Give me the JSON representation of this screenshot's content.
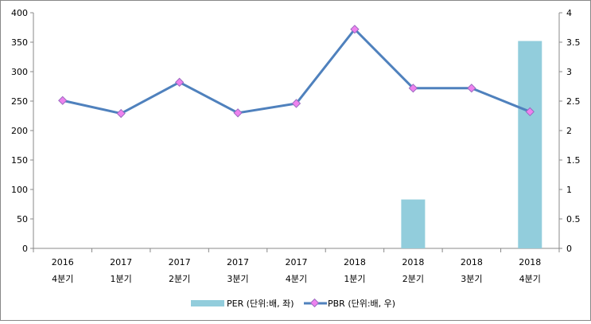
{
  "chart_data": {
    "type": "bar+line",
    "categories": [
      [
        "2016",
        "4분기"
      ],
      [
        "2017",
        "1분기"
      ],
      [
        "2017",
        "2분기"
      ],
      [
        "2017",
        "3분기"
      ],
      [
        "2017",
        "4분기"
      ],
      [
        "2018",
        "1분기"
      ],
      [
        "2018",
        "2분기"
      ],
      [
        "2018",
        "3분기"
      ],
      [
        "2018",
        "4분기"
      ]
    ],
    "series": [
      {
        "name": "PER (단위:배, 좌)",
        "type": "bar",
        "axis": "left",
        "color": "#92CDDC",
        "values": [
          null,
          null,
          null,
          null,
          null,
          null,
          83,
          null,
          352
        ]
      },
      {
        "name": "PBR (단위:배, 우)",
        "type": "line",
        "axis": "right",
        "color": "#4F81BD",
        "marker_color": "#EE82EE",
        "values": [
          2.51,
          2.29,
          2.82,
          2.3,
          2.46,
          3.72,
          2.72,
          2.72,
          2.32
        ]
      }
    ],
    "left_axis": {
      "range": [
        0,
        400
      ],
      "ticks": [
        "0",
        "50",
        "100",
        "150",
        "200",
        "250",
        "300",
        "350",
        "400"
      ]
    },
    "right_axis": {
      "range": [
        0,
        4
      ],
      "ticks": [
        "0",
        "0.5",
        "1",
        "1.5",
        "2",
        "2.5",
        "3",
        "3.5",
        "4"
      ]
    },
    "grid": false,
    "legend": "bottom"
  }
}
